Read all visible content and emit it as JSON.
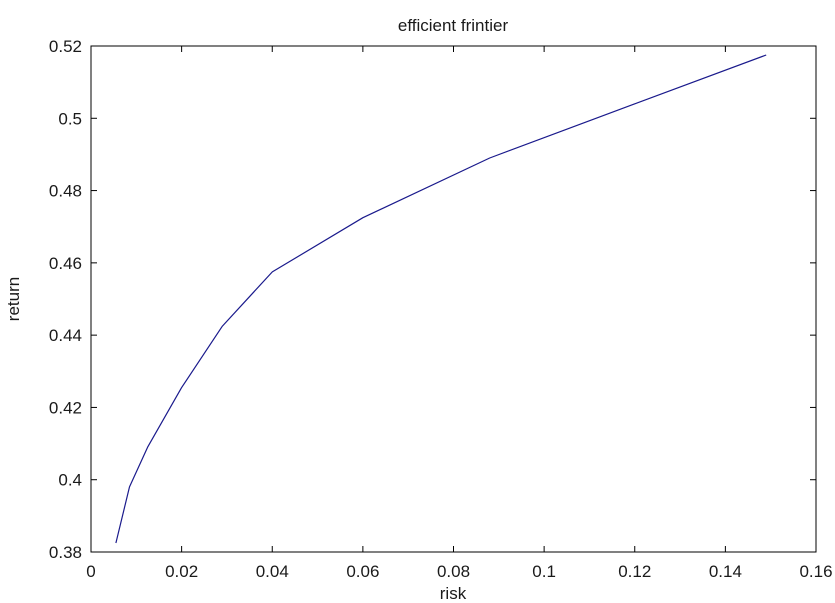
{
  "chart_data": {
    "type": "line",
    "title": "efficient frintier",
    "xlabel": "risk",
    "ylabel": "return",
    "xlim": [
      0,
      0.16
    ],
    "ylim": [
      0.38,
      0.52
    ],
    "xticks": [
      0,
      0.02,
      0.04,
      0.06,
      0.08,
      0.1,
      0.12,
      0.14,
      0.16
    ],
    "xtick_labels": [
      "0",
      "0.02",
      "0.04",
      "0.06",
      "0.08",
      "0.1",
      "0.12",
      "0.14",
      "0.16"
    ],
    "yticks": [
      0.38,
      0.4,
      0.42,
      0.44,
      0.46,
      0.48,
      0.5,
      0.52
    ],
    "ytick_labels": [
      "0.38",
      "0.4",
      "0.42",
      "0.44",
      "0.46",
      "0.48",
      "0.5",
      "0.52"
    ],
    "grid": false,
    "series": [
      {
        "color": "#1a1a8c",
        "x": [
          0.0055,
          0.0085,
          0.0125,
          0.02,
          0.029,
          0.04,
          0.06,
          0.088,
          0.12,
          0.149
        ],
        "y": [
          0.3825,
          0.398,
          0.409,
          0.4255,
          0.4425,
          0.4575,
          0.4725,
          0.489,
          0.504,
          0.5175
        ]
      }
    ]
  }
}
